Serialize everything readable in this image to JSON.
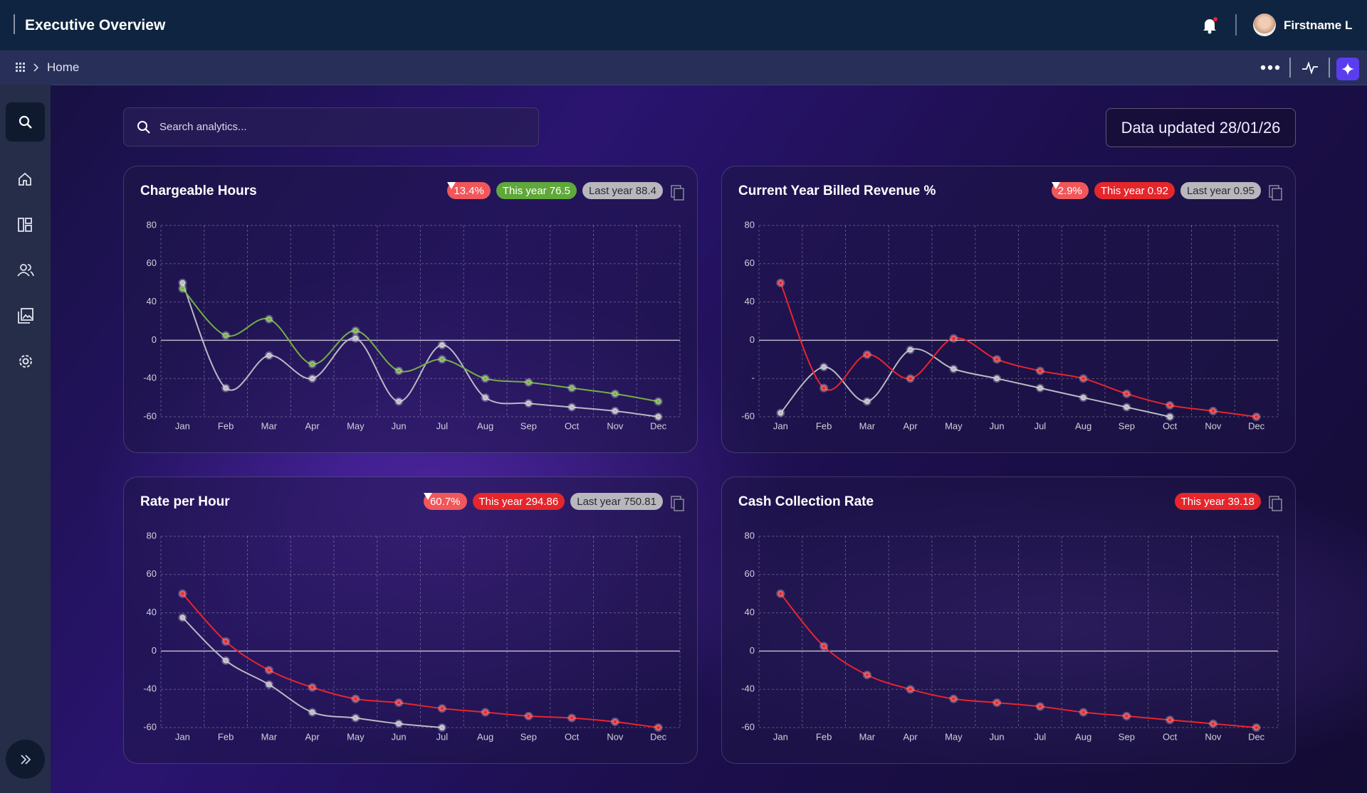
{
  "header": {
    "title": "Executive Overview",
    "user": "Firstname L"
  },
  "breadcrumb": {
    "home": "Home"
  },
  "search": {
    "placeholder": "Search analytics..."
  },
  "status": {
    "updated": "Data updated 28/01/26"
  },
  "chart_data": [
    {
      "type": "line",
      "title": "Chargeable Hours",
      "badges": [
        {
          "text": "13.4%",
          "kind": "down"
        },
        {
          "text": "This year 76.5",
          "kind": "good"
        },
        {
          "text": "Last year 88.4",
          "kind": "neutral"
        }
      ],
      "categories": [
        "Jan",
        "Feb",
        "Mar",
        "Apr",
        "May",
        "Jun",
        "Jul",
        "Aug",
        "Sep",
        "Oct",
        "Nov",
        "Dec"
      ],
      "series": [
        {
          "name": "Last year",
          "color": "#b9b9c2",
          "values": [
            50,
            -45,
            -16,
            -40,
            2,
            -52,
            -5,
            -50,
            -53,
            -55,
            -57,
            -60
          ]
        },
        {
          "name": "This year",
          "color": "#74b043",
          "values": [
            47,
            5,
            22,
            -25,
            10,
            -32,
            -20,
            -40,
            -42,
            -45,
            -48,
            -52
          ]
        }
      ],
      "ylim": [
        -60,
        80
      ],
      "yticks": [
        -60,
        -40,
        0,
        40,
        60,
        80
      ],
      "grid": true
    },
    {
      "type": "line",
      "title": "Current Year Billed Revenue %",
      "badges": [
        {
          "text": "2.9%",
          "kind": "down"
        },
        {
          "text": "This year 0.92",
          "kind": "bad"
        },
        {
          "text": "Last year 0.95",
          "kind": "neutral"
        }
      ],
      "categories": [
        "Jan",
        "Feb",
        "Mar",
        "Apr",
        "May",
        "Jun",
        "Jul",
        "Aug",
        "Sep",
        "Oct",
        "Nov",
        "Dec"
      ],
      "series": [
        {
          "name": "Last year",
          "color": "#b9b9c2",
          "values": [
            -58,
            -28,
            -52,
            -10,
            -30,
            -40,
            -45,
            -50,
            -55,
            -60,
            null,
            null
          ]
        },
        {
          "name": "This year",
          "color": "#e8242c",
          "values": [
            50,
            -45,
            -15,
            -40,
            2,
            -20,
            -32,
            -40,
            -48,
            -54,
            -57,
            -60
          ]
        }
      ],
      "ylim": [
        -60,
        80
      ],
      "yticks": [
        -60,
        {
          "value": -40,
          "label": "-"
        },
        0,
        40,
        60,
        80
      ],
      "grid": true
    },
    {
      "type": "line",
      "title": "Rate per Hour",
      "badges": [
        {
          "text": "60.7%",
          "kind": "down"
        },
        {
          "text": "This year 294.86",
          "kind": "bad"
        },
        {
          "text": "Last year 750.81",
          "kind": "neutral"
        }
      ],
      "categories": [
        "Jan",
        "Feb",
        "Mar",
        "Apr",
        "May",
        "Jun",
        "Jul",
        "Aug",
        "Sep",
        "Oct",
        "Nov",
        "Dec"
      ],
      "series": [
        {
          "name": "Last year",
          "color": "#b9b9c2",
          "values": [
            35,
            -10,
            -35,
            -52,
            -55,
            -58,
            -60,
            null,
            null,
            null,
            null,
            null
          ]
        },
        {
          "name": "This year",
          "color": "#e8242c",
          "values": [
            50,
            10,
            -20,
            -38,
            -45,
            -47,
            -50,
            -52,
            -54,
            -55,
            -57,
            -60
          ]
        }
      ],
      "ylim": [
        -60,
        80
      ],
      "yticks": [
        -60,
        -40,
        0,
        40,
        60,
        80
      ],
      "grid": true
    },
    {
      "type": "line",
      "title": "Cash Collection Rate",
      "badges": [
        {
          "text": "This year 39.18",
          "kind": "bad"
        }
      ],
      "categories": [
        "Jan",
        "Feb",
        "Mar",
        "Apr",
        "May",
        "Jun",
        "Jul",
        "Aug",
        "Sep",
        "Oct",
        "Nov",
        "Dec"
      ],
      "series": [
        {
          "name": "This year",
          "color": "#e8242c",
          "values": [
            50,
            5,
            -25,
            -40,
            -45,
            -47,
            -49,
            -52,
            -54,
            -56,
            -58,
            -60
          ]
        }
      ],
      "ylim": [
        -60,
        80
      ],
      "yticks": [
        -60,
        -40,
        0,
        40,
        60,
        80
      ],
      "grid": true
    }
  ]
}
